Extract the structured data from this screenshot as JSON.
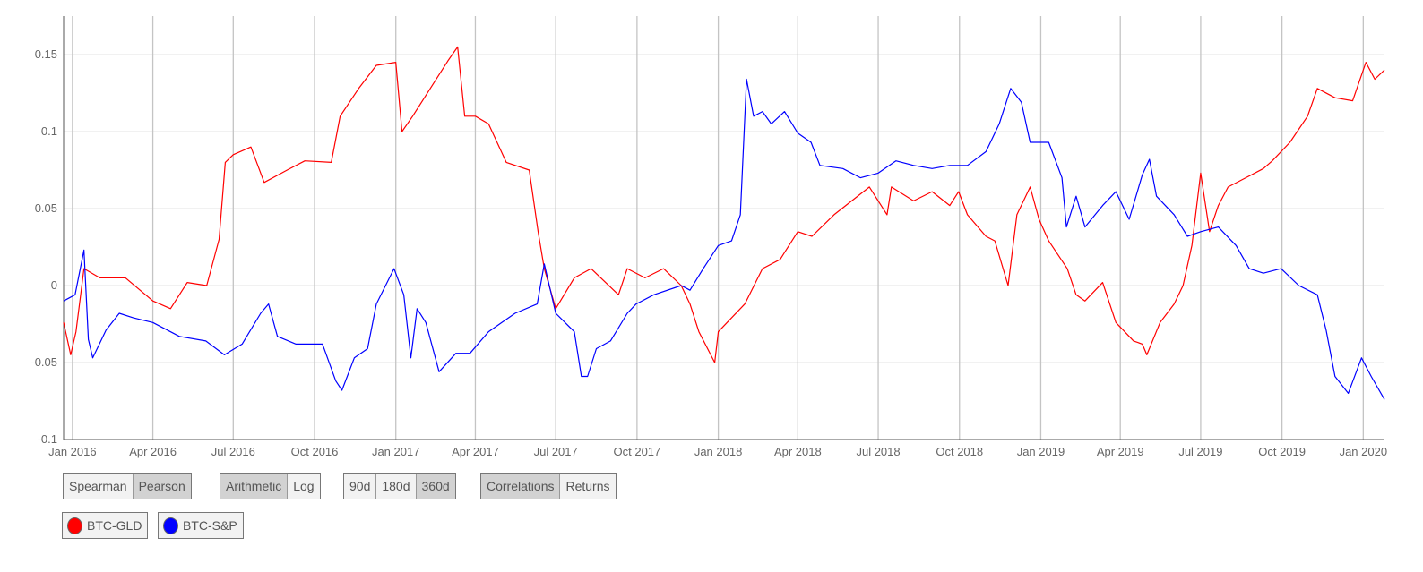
{
  "chart_data": {
    "type": "line",
    "xlim": [
      "2015-12-22",
      "2020-01-25"
    ],
    "ylim": [
      -0.1,
      0.175
    ],
    "y_ticks": [
      "0.15",
      "0.1",
      "0.05",
      "0",
      "-0.05",
      "-0.1"
    ],
    "y_tick_values": [
      0.15,
      0.1,
      0.05,
      0,
      -0.05,
      -0.1
    ],
    "x_ticks": [
      "Jan 2016",
      "Apr 2016",
      "Jul 2016",
      "Oct 2016",
      "Jan 2017",
      "Apr 2017",
      "Jul 2017",
      "Oct 2017",
      "Jan 2018",
      "Apr 2018",
      "Jul 2018",
      "Oct 2018",
      "Jan 2019",
      "Apr 2019",
      "Jul 2019",
      "Oct 2019",
      "Jan 2020"
    ],
    "x_tick_dates": [
      "2016-01-01",
      "2016-04-01",
      "2016-07-01",
      "2016-10-01",
      "2017-01-01",
      "2017-04-01",
      "2017-07-01",
      "2017-10-01",
      "2018-01-01",
      "2018-04-01",
      "2018-07-01",
      "2018-10-01",
      "2019-01-01",
      "2019-04-01",
      "2019-07-01",
      "2019-10-01",
      "2020-01-01"
    ],
    "grid": true,
    "series": [
      {
        "name": "BTC-GLD",
        "color": "#ff0000",
        "points": [
          [
            "2015-12-22",
            -0.024
          ],
          [
            "2015-12-30",
            -0.045
          ],
          [
            "2016-01-05",
            -0.03
          ],
          [
            "2016-01-14",
            0.011
          ],
          [
            "2016-02-01",
            0.005
          ],
          [
            "2016-03-01",
            0.005
          ],
          [
            "2016-04-01",
            -0.01
          ],
          [
            "2016-04-21",
            -0.015
          ],
          [
            "2016-05-10",
            0.002
          ],
          [
            "2016-06-01",
            0
          ],
          [
            "2016-06-15",
            0.03
          ],
          [
            "2016-06-22",
            0.08
          ],
          [
            "2016-07-01",
            0.085
          ],
          [
            "2016-07-21",
            0.09
          ],
          [
            "2016-08-05",
            0.067
          ],
          [
            "2016-08-31",
            0.075
          ],
          [
            "2016-09-20",
            0.081
          ],
          [
            "2016-10-20",
            0.08
          ],
          [
            "2016-10-30",
            0.11
          ],
          [
            "2016-11-20",
            0.128
          ],
          [
            "2016-12-10",
            0.143
          ],
          [
            "2017-01-01",
            0.145
          ],
          [
            "2017-01-08",
            0.1
          ],
          [
            "2017-01-20",
            0.11
          ],
          [
            "2017-02-09",
            0.128
          ],
          [
            "2017-03-01",
            0.146
          ],
          [
            "2017-03-12",
            0.155
          ],
          [
            "2017-03-20",
            0.11
          ],
          [
            "2017-04-01",
            0.11
          ],
          [
            "2017-04-16",
            0.105
          ],
          [
            "2017-05-06",
            0.08
          ],
          [
            "2017-06-01",
            0.075
          ],
          [
            "2017-06-11",
            0.035
          ],
          [
            "2017-06-18",
            0.011
          ],
          [
            "2017-07-01",
            -0.015
          ],
          [
            "2017-07-22",
            0.005
          ],
          [
            "2017-08-10",
            0.011
          ],
          [
            "2017-09-10",
            -0.006
          ],
          [
            "2017-09-20",
            0.011
          ],
          [
            "2017-10-10",
            0.005
          ],
          [
            "2017-10-31",
            0.011
          ],
          [
            "2017-11-20",
            0
          ],
          [
            "2017-11-30",
            -0.012
          ],
          [
            "2017-12-10",
            -0.03
          ],
          [
            "2017-12-28",
            -0.05
          ],
          [
            "2018-01-01",
            -0.03
          ],
          [
            "2018-01-31",
            -0.012
          ],
          [
            "2018-02-20",
            0.011
          ],
          [
            "2018-03-12",
            0.017
          ],
          [
            "2018-04-01",
            0.035
          ],
          [
            "2018-04-17",
            0.032
          ],
          [
            "2018-05-12",
            0.046
          ],
          [
            "2018-06-01",
            0.055
          ],
          [
            "2018-06-21",
            0.064
          ],
          [
            "2018-07-11",
            0.046
          ],
          [
            "2018-07-16",
            0.064
          ],
          [
            "2018-08-10",
            0.055
          ],
          [
            "2018-08-31",
            0.061
          ],
          [
            "2018-09-20",
            0.052
          ],
          [
            "2018-09-30",
            0.061
          ],
          [
            "2018-10-10",
            0.046
          ],
          [
            "2018-10-31",
            0.032
          ],
          [
            "2018-11-10",
            0.029
          ],
          [
            "2018-11-25",
            0
          ],
          [
            "2018-12-05",
            0.046
          ],
          [
            "2018-12-20",
            0.064
          ],
          [
            "2018-12-30",
            0.043
          ],
          [
            "2019-01-10",
            0.029
          ],
          [
            "2019-01-31",
            0.011
          ],
          [
            "2019-02-10",
            -0.006
          ],
          [
            "2019-02-20",
            -0.01
          ],
          [
            "2019-03-12",
            0.002
          ],
          [
            "2019-03-27",
            -0.024
          ],
          [
            "2019-04-16",
            -0.036
          ],
          [
            "2019-04-26",
            -0.038
          ],
          [
            "2019-05-01",
            -0.045
          ],
          [
            "2019-05-16",
            -0.024
          ],
          [
            "2019-06-01",
            -0.012
          ],
          [
            "2019-06-11",
            0
          ],
          [
            "2019-06-21",
            0.026
          ],
          [
            "2019-07-01",
            0.073
          ],
          [
            "2019-07-11",
            0.035
          ],
          [
            "2019-07-21",
            0.052
          ],
          [
            "2019-08-01",
            0.064
          ],
          [
            "2019-08-21",
            0.07
          ],
          [
            "2019-09-10",
            0.076
          ],
          [
            "2019-09-20",
            0.081
          ],
          [
            "2019-10-10",
            0.093
          ],
          [
            "2019-10-30",
            0.11
          ],
          [
            "2019-11-10",
            0.128
          ],
          [
            "2019-11-30",
            0.122
          ],
          [
            "2019-12-20",
            0.12
          ],
          [
            "2020-01-04",
            0.145
          ],
          [
            "2020-01-14",
            0.134
          ],
          [
            "2020-01-25",
            0.14
          ]
        ]
      },
      {
        "name": "BTC-S&P",
        "color": "#0000ff",
        "points": [
          [
            "2015-12-22",
            -0.01
          ],
          [
            "2016-01-04",
            -0.006
          ],
          [
            "2016-01-14",
            0.023
          ],
          [
            "2016-01-19",
            -0.035
          ],
          [
            "2016-01-24",
            -0.047
          ],
          [
            "2016-02-08",
            -0.029
          ],
          [
            "2016-02-23",
            -0.018
          ],
          [
            "2016-03-10",
            -0.021
          ],
          [
            "2016-04-01",
            -0.024
          ],
          [
            "2016-05-01",
            -0.033
          ],
          [
            "2016-05-31",
            -0.036
          ],
          [
            "2016-06-21",
            -0.045
          ],
          [
            "2016-07-11",
            -0.038
          ],
          [
            "2016-08-01",
            -0.018
          ],
          [
            "2016-08-10",
            -0.012
          ],
          [
            "2016-08-20",
            -0.033
          ],
          [
            "2016-09-10",
            -0.038
          ],
          [
            "2016-10-10",
            -0.038
          ],
          [
            "2016-10-25",
            -0.062
          ],
          [
            "2016-11-01",
            -0.068
          ],
          [
            "2016-11-15",
            -0.047
          ],
          [
            "2016-11-30",
            -0.041
          ],
          [
            "2016-12-10",
            -0.012
          ],
          [
            "2016-12-30",
            0.011
          ],
          [
            "2017-01-10",
            -0.006
          ],
          [
            "2017-01-18",
            -0.047
          ],
          [
            "2017-01-25",
            -0.015
          ],
          [
            "2017-02-04",
            -0.024
          ],
          [
            "2017-02-19",
            -0.056
          ],
          [
            "2017-03-10",
            -0.044
          ],
          [
            "2017-03-26",
            -0.044
          ],
          [
            "2017-04-16",
            -0.03
          ],
          [
            "2017-05-01",
            -0.024
          ],
          [
            "2017-05-16",
            -0.018
          ],
          [
            "2017-06-10",
            -0.012
          ],
          [
            "2017-06-18",
            0.014
          ],
          [
            "2017-07-01",
            -0.018
          ],
          [
            "2017-07-22",
            -0.03
          ],
          [
            "2017-07-30",
            -0.059
          ],
          [
            "2017-08-06",
            -0.059
          ],
          [
            "2017-08-16",
            -0.041
          ],
          [
            "2017-09-01",
            -0.036
          ],
          [
            "2017-09-20",
            -0.018
          ],
          [
            "2017-09-30",
            -0.012
          ],
          [
            "2017-10-20",
            -0.006
          ],
          [
            "2017-11-20",
            0
          ],
          [
            "2017-11-30",
            -0.003
          ],
          [
            "2017-12-15",
            0.011
          ],
          [
            "2018-01-01",
            0.026
          ],
          [
            "2018-01-16",
            0.029
          ],
          [
            "2018-01-26",
            0.046
          ],
          [
            "2018-02-02",
            0.134
          ],
          [
            "2018-02-10",
            0.11
          ],
          [
            "2018-02-20",
            0.113
          ],
          [
            "2018-03-02",
            0.105
          ],
          [
            "2018-03-17",
            0.113
          ],
          [
            "2018-04-01",
            0.099
          ],
          [
            "2018-04-16",
            0.093
          ],
          [
            "2018-04-26",
            0.078
          ],
          [
            "2018-05-22",
            0.076
          ],
          [
            "2018-06-11",
            0.07
          ],
          [
            "2018-07-01",
            0.073
          ],
          [
            "2018-07-21",
            0.081
          ],
          [
            "2018-08-10",
            0.078
          ],
          [
            "2018-08-31",
            0.076
          ],
          [
            "2018-09-20",
            0.078
          ],
          [
            "2018-10-10",
            0.078
          ],
          [
            "2018-10-31",
            0.087
          ],
          [
            "2018-11-15",
            0.105
          ],
          [
            "2018-11-28",
            0.128
          ],
          [
            "2018-12-10",
            0.119
          ],
          [
            "2018-12-20",
            0.093
          ],
          [
            "2019-01-10",
            0.093
          ],
          [
            "2019-01-25",
            0.07
          ],
          [
            "2019-01-30",
            0.038
          ],
          [
            "2019-02-10",
            0.058
          ],
          [
            "2019-02-20",
            0.038
          ],
          [
            "2019-03-12",
            0.052
          ],
          [
            "2019-03-27",
            0.061
          ],
          [
            "2019-04-11",
            0.043
          ],
          [
            "2019-04-26",
            0.072
          ],
          [
            "2019-05-04",
            0.082
          ],
          [
            "2019-05-12",
            0.058
          ],
          [
            "2019-06-01",
            0.046
          ],
          [
            "2019-06-16",
            0.032
          ],
          [
            "2019-07-01",
            0.035
          ],
          [
            "2019-07-21",
            0.038
          ],
          [
            "2019-08-10",
            0.026
          ],
          [
            "2019-08-25",
            0.011
          ],
          [
            "2019-09-10",
            0.008
          ],
          [
            "2019-09-30",
            0.011
          ],
          [
            "2019-10-20",
            0
          ],
          [
            "2019-11-10",
            -0.006
          ],
          [
            "2019-11-20",
            -0.029
          ],
          [
            "2019-11-30",
            -0.059
          ],
          [
            "2019-12-15",
            -0.07
          ],
          [
            "2019-12-30",
            -0.047
          ],
          [
            "2020-01-10",
            -0.059
          ],
          [
            "2020-01-25",
            -0.074
          ]
        ]
      }
    ]
  },
  "controls": {
    "method": [
      {
        "label": "Spearman",
        "selected": false
      },
      {
        "label": "Pearson",
        "selected": true
      }
    ],
    "scale": [
      {
        "label": "Arithmetic",
        "selected": true
      },
      {
        "label": "Log",
        "selected": false
      }
    ],
    "window": [
      {
        "label": "90d",
        "selected": false
      },
      {
        "label": "180d",
        "selected": false
      },
      {
        "label": "360d",
        "selected": true
      }
    ],
    "mode": [
      {
        "label": "Correlations",
        "selected": true
      },
      {
        "label": "Returns",
        "selected": false
      }
    ]
  },
  "legend": [
    {
      "label": "BTC-GLD",
      "color": "#ff0000"
    },
    {
      "label": "BTC-S&P",
      "color": "#0000ff"
    }
  ]
}
